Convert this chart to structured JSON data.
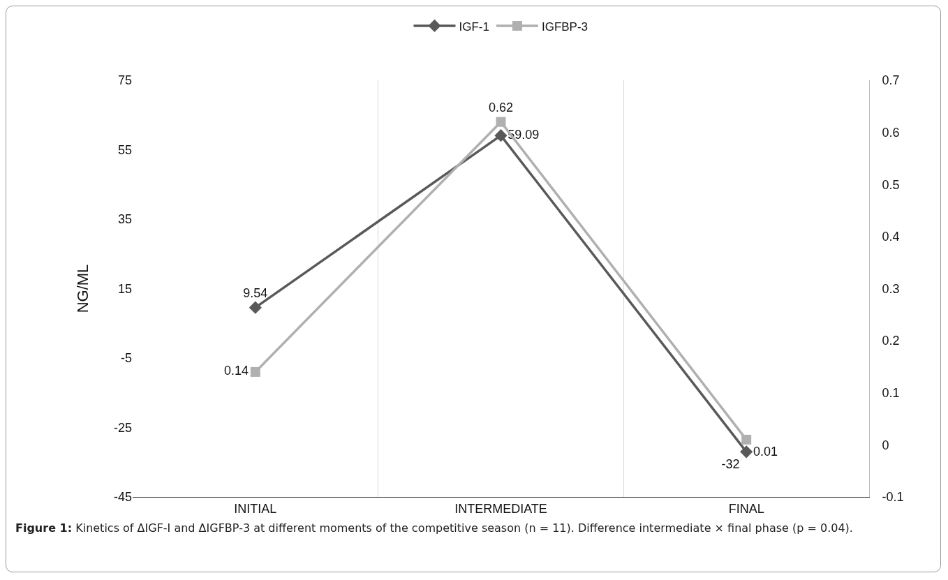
{
  "chart_data": {
    "type": "line",
    "categories": [
      "INITIAL",
      "INTERMEDIATE",
      "FINAL"
    ],
    "ylabel": "NG/ML",
    "series": [
      {
        "name": "IGF-1",
        "color": "#595959",
        "marker": "diamond",
        "values": [
          9.54,
          59.09,
          -32
        ]
      },
      {
        "name": "IGFBP-3",
        "color": "#b0b0b0",
        "marker": "square",
        "axis": "y2",
        "values": [
          0.14,
          0.62,
          0.01
        ]
      }
    ],
    "ylim": [
      -45,
      75
    ],
    "yticks": [
      -45,
      -25,
      -5,
      15,
      35,
      55,
      75
    ],
    "y2lim": [
      -0.1,
      0.7
    ],
    "y2ticks": [
      -0.1,
      {
        "value": 0,
        "label": "0"
      },
      0.1,
      0.2,
      0.3,
      0.4,
      0.5,
      0.6,
      0.7
    ],
    "grid": "x",
    "legend": "top",
    "data_labels": true,
    "annotations": [
      "Figure 1: Kinetics of ΔIGF-I and ΔIGFBP-3 at different moments of the competitive season (n = 11). Difference intermediate × final phase (p = 0.04)."
    ]
  }
}
